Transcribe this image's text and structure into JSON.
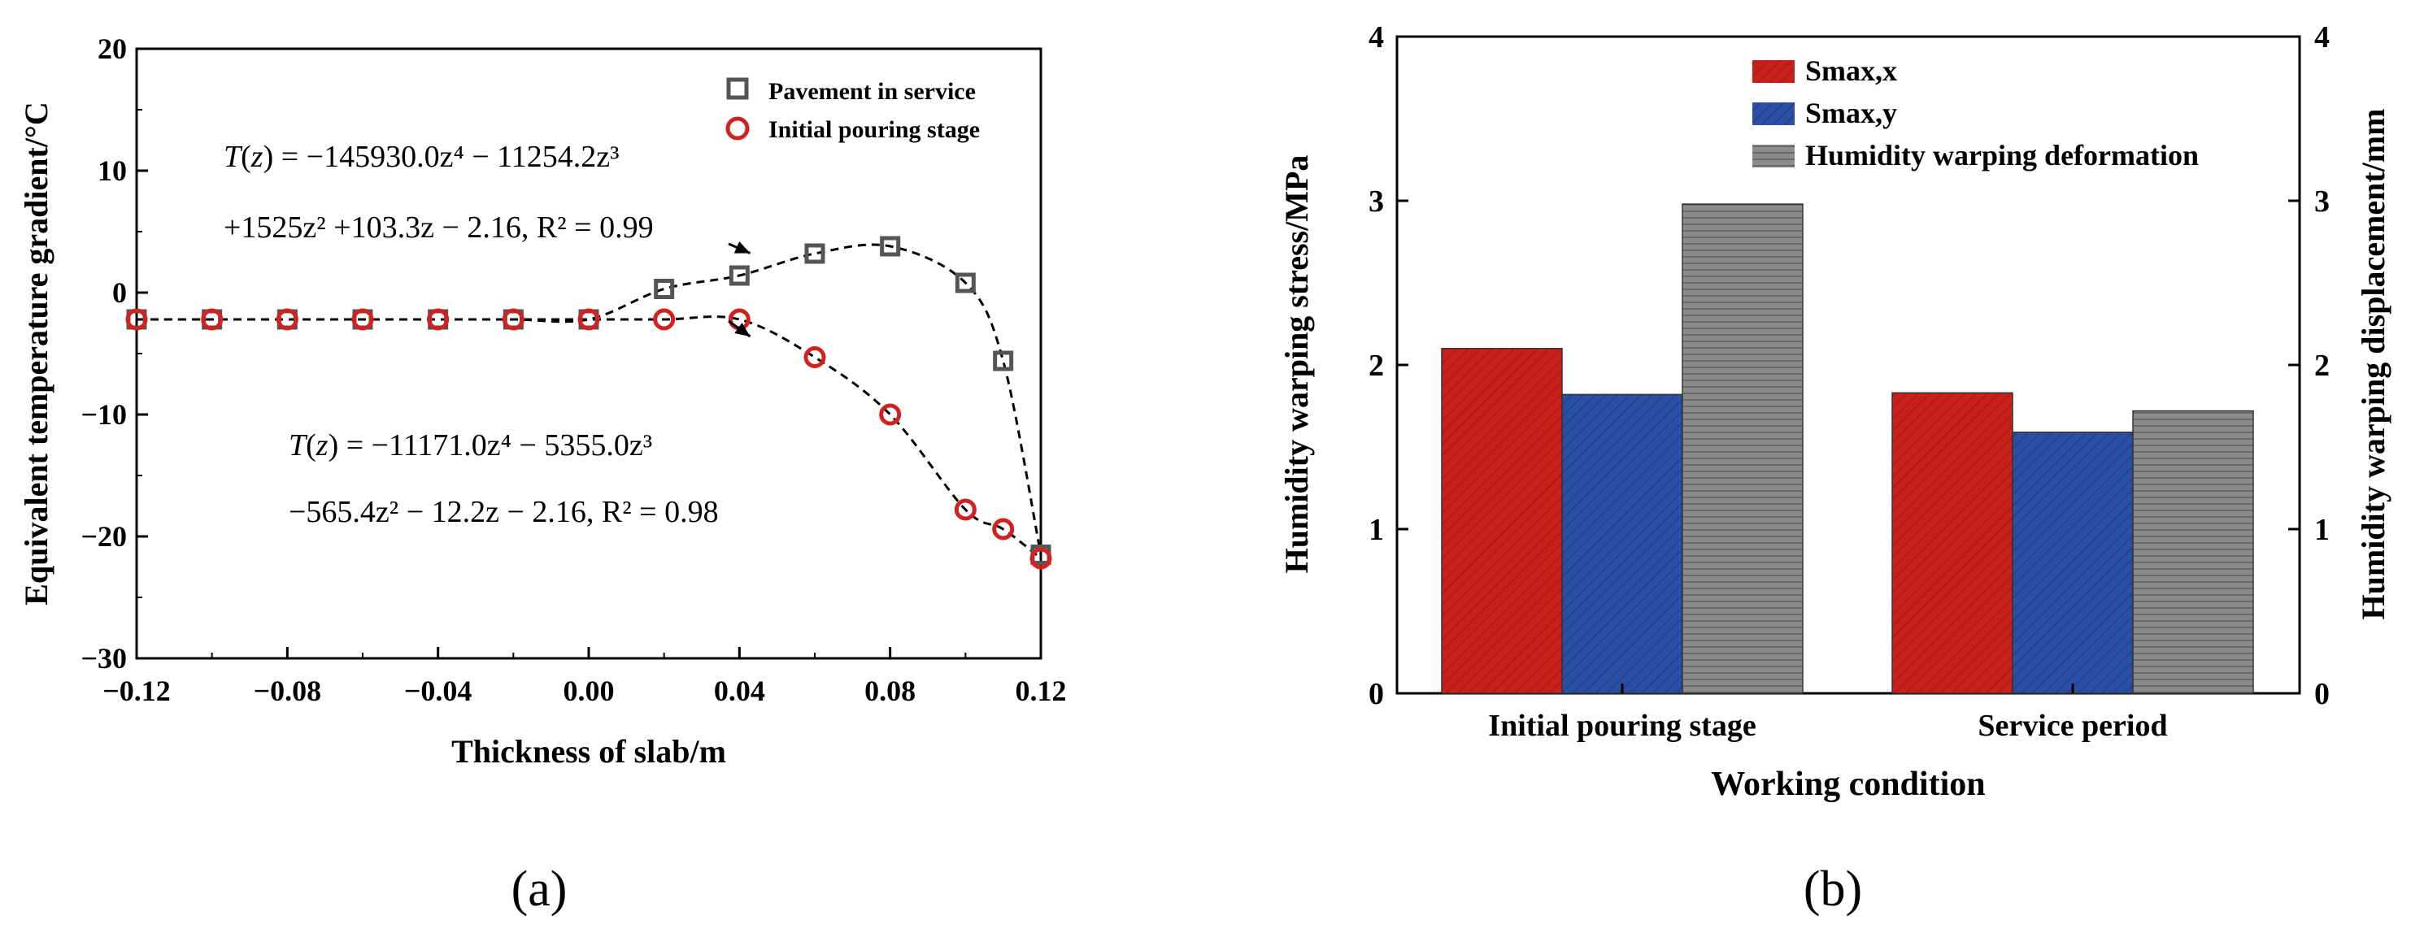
{
  "figure_labels": {
    "a": "(a)",
    "b": "(b)"
  },
  "chart_data": [
    {
      "type": "scatter",
      "xlabel": "Thickness of slab/m",
      "ylabel": "Equivalent temperature gradient/°C",
      "xlim": [
        -0.12,
        0.12
      ],
      "ylim": [
        -30,
        20
      ],
      "x_ticks": [
        -0.12,
        -0.08,
        -0.04,
        0.0,
        0.04,
        0.08,
        0.12
      ],
      "x_tick_labels": [
        "−0.12",
        "−0.08",
        "−0.04",
        "0.00",
        "0.04",
        "0.08",
        "0.12"
      ],
      "y_ticks": [
        -30,
        -20,
        -10,
        0,
        10,
        20
      ],
      "y_tick_labels": [
        "−30",
        "−20",
        "−10",
        "0",
        "10",
        "20"
      ],
      "legend": [
        "Pavement in service",
        "Initial pouring stage"
      ],
      "series": [
        {
          "name": "Pavement in service",
          "marker": "square",
          "color": "#555555",
          "x": [
            -0.12,
            -0.1,
            -0.08,
            -0.06,
            -0.04,
            -0.02,
            0.0,
            0.02,
            0.04,
            0.06,
            0.08,
            0.1,
            0.11,
            0.12
          ],
          "y": [
            -2.2,
            -2.2,
            -2.2,
            -2.2,
            -2.2,
            -2.2,
            -2.2,
            0.3,
            1.4,
            3.2,
            3.8,
            0.8,
            -5.6,
            -21.5
          ],
          "fit": {
            "coefficients": [
              -145930.0,
              -11254.2,
              1525,
              103.3,
              -2.16
            ],
            "r2": 0.99
          }
        },
        {
          "name": "Initial pouring stage",
          "marker": "circle",
          "color": "#d32020",
          "x": [
            -0.12,
            -0.1,
            -0.08,
            -0.06,
            -0.04,
            -0.02,
            0.0,
            0.02,
            0.04,
            0.06,
            0.08,
            0.1,
            0.11,
            0.12
          ],
          "y": [
            -2.2,
            -2.2,
            -2.2,
            -2.2,
            -2.2,
            -2.2,
            -2.2,
            -2.2,
            -2.2,
            -5.3,
            -10.0,
            -17.8,
            -19.4,
            -21.8
          ],
          "fit": {
            "coefficients": [
              -11171.0,
              -5355.0,
              -565.4,
              -12.2,
              -2.16
            ],
            "r2": 0.98
          }
        }
      ],
      "annotations": [
        {
          "line1_prefix": "T",
          "line1_arg": "z",
          "line1_body": " = −145930.0z⁴ − 11254.2z³",
          "line2": "+1525z² +103.3z − 2.16, R² = 0.99",
          "anchor_x": 0.045,
          "anchor_y": 2.7
        },
        {
          "line1_prefix": "T",
          "line1_arg": "z",
          "line1_body": " = −11171.0z⁴ − 5355.0z³",
          "line2": "−565.4z² − 12.2z − 2.16, R² = 0.98",
          "anchor_x": 0.045,
          "anchor_y": -3.2
        }
      ]
    },
    {
      "type": "bar",
      "xlabel": "Working condition",
      "ylabel": "Humidity  warping stress/MPa",
      "ylabel_right": "Humidity warping displacement/mm",
      "categories": [
        "Initial pouring stage",
        "Service period"
      ],
      "ylim": [
        0,
        4
      ],
      "ylim_right": [
        0,
        4
      ],
      "y_ticks": [
        0,
        1,
        2,
        3,
        4
      ],
      "y_tick_labels": [
        "0",
        "1",
        "2",
        "3",
        "4"
      ],
      "series": [
        {
          "name": "Smax,x",
          "values": [
            2.1,
            1.83
          ],
          "color": "#c8201a",
          "axis": "left"
        },
        {
          "name": "Smax,y",
          "values": [
            1.82,
            1.59
          ],
          "color": "#2a4fa3",
          "axis": "left"
        },
        {
          "name": "Humidity warping deformation",
          "values": [
            2.98,
            1.72
          ],
          "color": "#8c8c8c",
          "axis": "right"
        }
      ]
    }
  ]
}
